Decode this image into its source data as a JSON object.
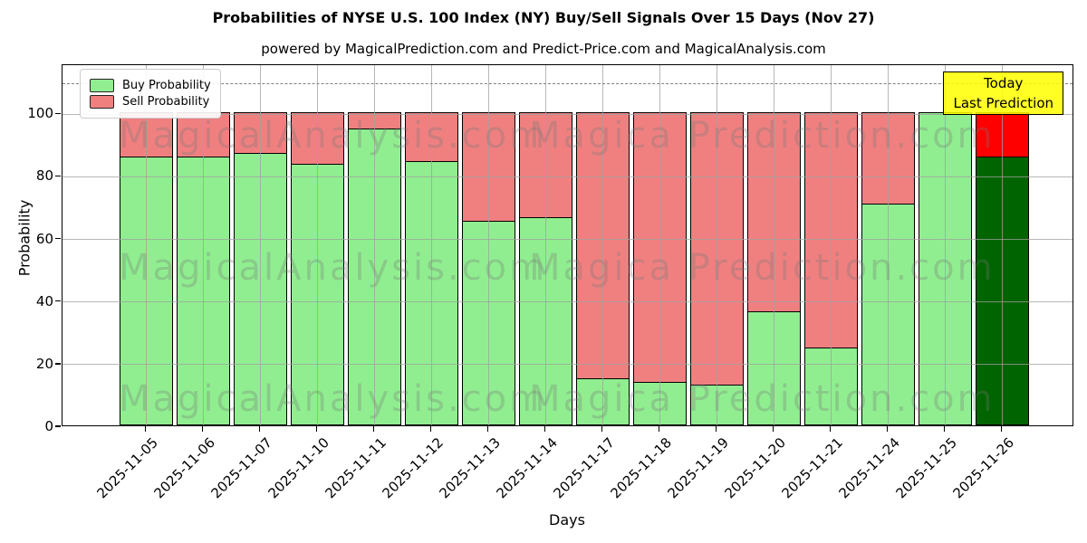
{
  "title": "Probabilities of NYSE U.S. 100 Index (NY) Buy/Sell Signals Over 15 Days (Nov 27)",
  "subtitle": "powered by MagicalPrediction.com and Predict-Price.com and MagicalAnalysis.com",
  "annotation": {
    "line1": "Today",
    "line2": "Last Prediction"
  },
  "legend": {
    "buy_label": "Buy Probability",
    "sell_label": "Sell Probability"
  },
  "axes": {
    "ylabel": "Probability",
    "xlabel": "Days",
    "yticks": [
      0,
      20,
      40,
      60,
      80,
      100
    ],
    "ylim": [
      0,
      115.7
    ],
    "dashed_line_y": 110,
    "grid": true
  },
  "colors": {
    "buy": "#90EE90",
    "sell": "#F08080",
    "today_buy": "#006400",
    "today_sell": "#FF0000",
    "bar_edge": "#000000",
    "grid": "#a0a0a0",
    "dashed_line": "#7f7f7f",
    "annotation_bg": "#FFFF00",
    "annotation_border": "#000000",
    "watermark": "#787878"
  },
  "watermarks": {
    "left": "MagicalAnalysis.com",
    "right": "Magica Prediction.com"
  },
  "chart_data": {
    "type": "bar",
    "stacked": true,
    "title": "Probabilities of NYSE U.S. 100 Index (NY) Buy/Sell Signals Over 15 Days (Nov 27)",
    "xlabel": "Days",
    "ylabel": "Probability",
    "ylim": [
      0,
      115.7
    ],
    "yticks": [
      0,
      20,
      40,
      60,
      80,
      100
    ],
    "grid": true,
    "legend_position": "upper left",
    "dashed_line_y": 110,
    "categories": [
      "2025-11-05",
      "2025-11-06",
      "2025-11-07",
      "2025-11-10",
      "2025-11-11",
      "2025-11-12",
      "2025-11-13",
      "2025-11-14",
      "2025-11-17",
      "2025-11-18",
      "2025-11-19",
      "2025-11-20",
      "2025-11-21",
      "2025-11-24",
      "2025-11-25",
      "2025-11-26"
    ],
    "series": [
      {
        "name": "Buy Probability",
        "color": "#90EE90",
        "values": [
          86,
          86,
          87,
          83.5,
          95,
          84.5,
          65.5,
          66.5,
          15,
          14,
          13,
          36.5,
          25,
          71,
          100,
          86
        ]
      },
      {
        "name": "Sell Probability",
        "color": "#F08080",
        "values": [
          14,
          14,
          13,
          16.5,
          5,
          15.5,
          34.5,
          33.5,
          85,
          86,
          87,
          63.5,
          75,
          29,
          0,
          14
        ]
      }
    ],
    "today": {
      "index": 15,
      "buy_color": "#006400",
      "sell_color": "#FF0000",
      "label": "Today / Last Prediction"
    }
  }
}
